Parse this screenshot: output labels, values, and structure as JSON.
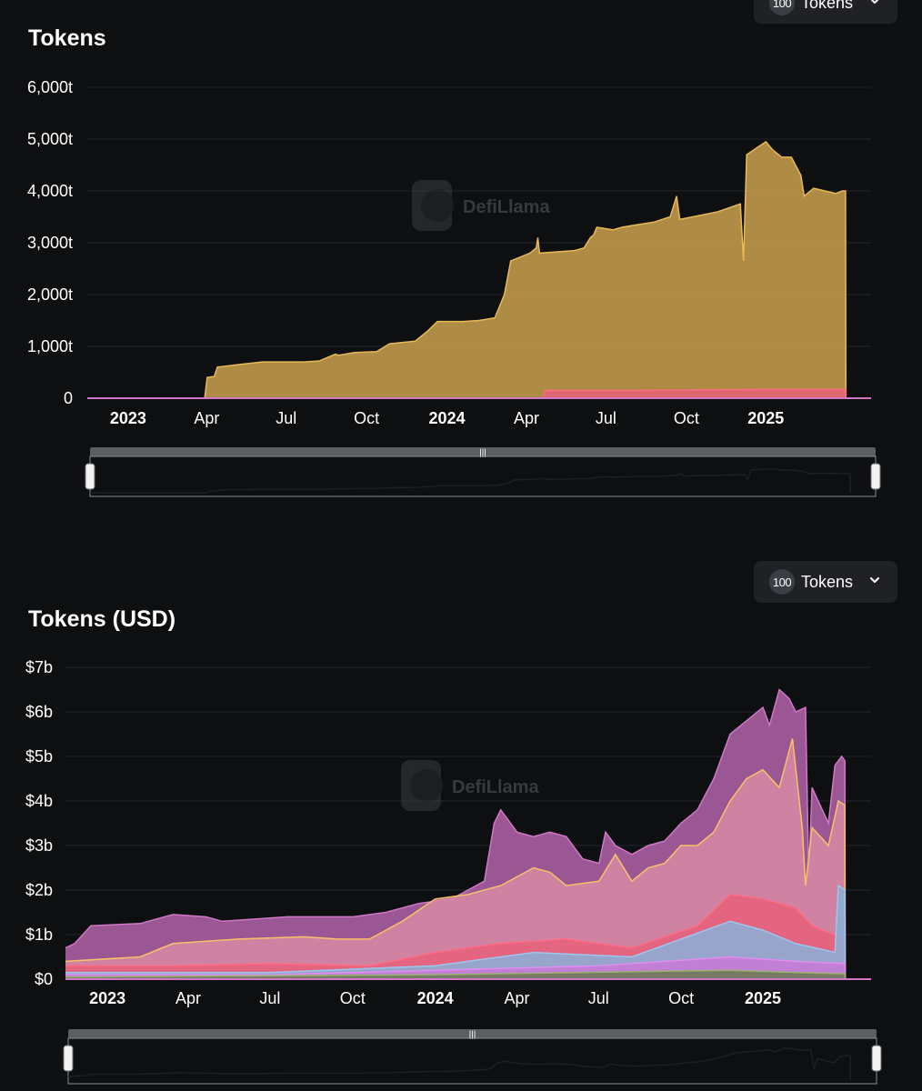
{
  "selector_top": {
    "count": "100",
    "label": "Tokens"
  },
  "selector_bottom": {
    "count": "100",
    "label": "Tokens"
  },
  "watermark": "DefiLlama",
  "chart_data": [
    {
      "type": "area",
      "title": "Tokens",
      "xlabel": "",
      "ylabel": "",
      "ylim": [
        0,
        6000
      ],
      "grid": true,
      "legend": "none",
      "y_ticks": [
        "0",
        "1,000t",
        "2,000t",
        "3,000t",
        "4,000t",
        "5,000t",
        "6,000t"
      ],
      "x_ticks": [
        {
          "label": "2023",
          "t": 0.0,
          "bold": true
        },
        {
          "label": "Apr",
          "t": 0.2466,
          "bold": false
        },
        {
          "label": "Jul",
          "t": 0.4959,
          "bold": false
        },
        {
          "label": "Oct",
          "t": 0.7479,
          "bold": false
        },
        {
          "label": "2024",
          "t": 1.0,
          "bold": true
        },
        {
          "label": "Apr",
          "t": 1.2493,
          "bold": false
        },
        {
          "label": "Jul",
          "t": 1.4986,
          "bold": false
        },
        {
          "label": "Oct",
          "t": 1.7507,
          "bold": false
        },
        {
          "label": "2025",
          "t": 2.0,
          "bold": true
        }
      ],
      "x_range": [
        -0.128,
        2.33
      ],
      "series": [
        {
          "color": "#b8934a",
          "stroke": "#e8b955",
          "points": [
            [
              -0.128,
              0
            ],
            [
              0.24,
              0
            ],
            [
              0.248,
              400
            ],
            [
              0.27,
              420
            ],
            [
              0.28,
              600
            ],
            [
              0.35,
              650
            ],
            [
              0.42,
              700
            ],
            [
              0.55,
              700
            ],
            [
              0.6,
              720
            ],
            [
              0.65,
              850
            ],
            [
              0.66,
              830
            ],
            [
              0.71,
              880
            ],
            [
              0.78,
              900
            ],
            [
              0.82,
              1050
            ],
            [
              0.9,
              1100
            ],
            [
              0.94,
              1300
            ],
            [
              0.97,
              1480
            ],
            [
              1.05,
              1480
            ],
            [
              1.1,
              1500
            ],
            [
              1.15,
              1550
            ],
            [
              1.18,
              2000
            ],
            [
              1.2,
              2650
            ],
            [
              1.26,
              2800
            ],
            [
              1.28,
              2900
            ],
            [
              1.285,
              3100
            ],
            [
              1.29,
              2800
            ],
            [
              1.4,
              2850
            ],
            [
              1.43,
              2900
            ],
            [
              1.45,
              3100
            ],
            [
              1.46,
              3150
            ],
            [
              1.47,
              3300
            ],
            [
              1.52,
              3250
            ],
            [
              1.55,
              3300
            ],
            [
              1.6,
              3350
            ],
            [
              1.65,
              3400
            ],
            [
              1.7,
              3500
            ],
            [
              1.72,
              3900
            ],
            [
              1.73,
              3450
            ],
            [
              1.85,
              3600
            ],
            [
              1.92,
              3750
            ],
            [
              1.93,
              2650
            ],
            [
              1.94,
              4700
            ],
            [
              2.0,
              4950
            ],
            [
              2.02,
              4800
            ],
            [
              2.05,
              4650
            ],
            [
              2.08,
              4650
            ],
            [
              2.11,
              4300
            ],
            [
              2.12,
              3900
            ],
            [
              2.15,
              4050
            ],
            [
              2.22,
              3950
            ],
            [
              2.24,
              4000
            ],
            [
              2.25,
              4000
            ],
            [
              2.251,
              0
            ]
          ]
        },
        {
          "color": "#e8607a",
          "stroke": "#ff6b81",
          "points": [
            [
              1.3,
              0
            ],
            [
              1.31,
              150
            ],
            [
              1.6,
              150
            ],
            [
              1.8,
              160
            ],
            [
              2.0,
              170
            ],
            [
              2.25,
              170
            ],
            [
              2.251,
              0
            ]
          ]
        }
      ]
    },
    {
      "type": "area",
      "title": "Tokens (USD)",
      "xlabel": "",
      "ylabel": "",
      "ylim": [
        0,
        7
      ],
      "grid": true,
      "legend": "none",
      "y_ticks": [
        "$0",
        "$1b",
        "$2b",
        "$3b",
        "$4b",
        "$5b",
        "$6b",
        "$7b"
      ],
      "x_ticks": [
        {
          "label": "2023",
          "t": 0.0,
          "bold": true
        },
        {
          "label": "Apr",
          "t": 0.2466,
          "bold": false
        },
        {
          "label": "Jul",
          "t": 0.4959,
          "bold": false
        },
        {
          "label": "Oct",
          "t": 0.7479,
          "bold": false
        },
        {
          "label": "2024",
          "t": 1.0,
          "bold": true
        },
        {
          "label": "Apr",
          "t": 1.2493,
          "bold": false
        },
        {
          "label": "Jul",
          "t": 1.4986,
          "bold": false
        },
        {
          "label": "Oct",
          "t": 1.7507,
          "bold": false
        },
        {
          "label": "2025",
          "t": 2.0,
          "bold": true
        }
      ],
      "x_range": [
        -0.128,
        2.33
      ],
      "series": [
        {
          "color": "#a35c9c",
          "stroke": "#d277c8",
          "points": [
            [
              -0.128,
              0.7
            ],
            [
              -0.1,
              0.8
            ],
            [
              -0.05,
              1.2
            ],
            [
              0.1,
              1.25
            ],
            [
              0.2,
              1.45
            ],
            [
              0.3,
              1.4
            ],
            [
              0.35,
              1.3
            ],
            [
              0.45,
              1.35
            ],
            [
              0.55,
              1.4
            ],
            [
              0.65,
              1.4
            ],
            [
              0.75,
              1.4
            ],
            [
              0.85,
              1.5
            ],
            [
              0.95,
              1.7
            ],
            [
              1.05,
              1.8
            ],
            [
              1.1,
              2.0
            ],
            [
              1.15,
              2.2
            ],
            [
              1.18,
              3.5
            ],
            [
              1.2,
              3.8
            ],
            [
              1.25,
              3.3
            ],
            [
              1.3,
              3.2
            ],
            [
              1.35,
              3.3
            ],
            [
              1.4,
              3.2
            ],
            [
              1.45,
              2.7
            ],
            [
              1.5,
              2.6
            ],
            [
              1.52,
              3.3
            ],
            [
              1.55,
              3.0
            ],
            [
              1.6,
              2.8
            ],
            [
              1.65,
              3.0
            ],
            [
              1.7,
              3.1
            ],
            [
              1.75,
              3.5
            ],
            [
              1.8,
              3.8
            ],
            [
              1.85,
              4.5
            ],
            [
              1.9,
              5.5
            ],
            [
              1.95,
              5.8
            ],
            [
              2.0,
              6.1
            ],
            [
              2.02,
              5.7
            ],
            [
              2.05,
              6.5
            ],
            [
              2.08,
              6.3
            ],
            [
              2.1,
              6.0
            ],
            [
              2.13,
              6.1
            ],
            [
              2.14,
              2.3
            ],
            [
              2.15,
              4.3
            ],
            [
              2.2,
              3.5
            ],
            [
              2.22,
              4.8
            ],
            [
              2.24,
              5.0
            ],
            [
              2.25,
              4.9
            ],
            [
              2.251,
              0
            ]
          ]
        },
        {
          "color": "#d98aa6",
          "stroke": "#f5c266",
          "points": [
            [
              -0.128,
              0.4
            ],
            [
              0.1,
              0.5
            ],
            [
              0.2,
              0.8
            ],
            [
              0.4,
              0.9
            ],
            [
              0.6,
              0.95
            ],
            [
              0.7,
              0.9
            ],
            [
              0.8,
              0.9
            ],
            [
              0.9,
              1.3
            ],
            [
              1.0,
              1.8
            ],
            [
              1.1,
              1.9
            ],
            [
              1.2,
              2.1
            ],
            [
              1.3,
              2.5
            ],
            [
              1.35,
              2.4
            ],
            [
              1.4,
              2.1
            ],
            [
              1.5,
              2.2
            ],
            [
              1.55,
              2.8
            ],
            [
              1.6,
              2.2
            ],
            [
              1.65,
              2.5
            ],
            [
              1.7,
              2.6
            ],
            [
              1.75,
              3.0
            ],
            [
              1.8,
              3.0
            ],
            [
              1.85,
              3.3
            ],
            [
              1.9,
              4.0
            ],
            [
              1.95,
              4.5
            ],
            [
              2.0,
              4.7
            ],
            [
              2.05,
              4.3
            ],
            [
              2.09,
              5.4
            ],
            [
              2.12,
              3.4
            ],
            [
              2.13,
              2.1
            ],
            [
              2.15,
              3.4
            ],
            [
              2.2,
              3.0
            ],
            [
              2.23,
              4.0
            ],
            [
              2.25,
              3.9
            ],
            [
              2.251,
              0
            ]
          ]
        },
        {
          "color": "#e8607a",
          "stroke": "#ff6b81",
          "points": [
            [
              -0.128,
              0.3
            ],
            [
              0.2,
              0.3
            ],
            [
              0.5,
              0.35
            ],
            [
              0.8,
              0.3
            ],
            [
              1.0,
              0.6
            ],
            [
              1.2,
              0.8
            ],
            [
              1.4,
              0.9
            ],
            [
              1.6,
              0.7
            ],
            [
              1.8,
              1.2
            ],
            [
              1.9,
              1.9
            ],
            [
              2.0,
              1.8
            ],
            [
              2.1,
              1.6
            ],
            [
              2.15,
              1.2
            ],
            [
              2.25,
              0.9
            ],
            [
              2.251,
              0
            ]
          ]
        },
        {
          "color": "#8ab0d8",
          "stroke": "#9fc4ee",
          "points": [
            [
              -0.128,
              0.15
            ],
            [
              0.5,
              0.15
            ],
            [
              1.0,
              0.3
            ],
            [
              1.3,
              0.6
            ],
            [
              1.6,
              0.5
            ],
            [
              1.9,
              1.3
            ],
            [
              2.0,
              1.1
            ],
            [
              2.1,
              0.8
            ],
            [
              2.22,
              0.6
            ],
            [
              2.23,
              2.1
            ],
            [
              2.25,
              2.0
            ],
            [
              2.251,
              0
            ]
          ]
        },
        {
          "color": "#c878d8",
          "stroke": "#e08df0",
          "points": [
            [
              -0.128,
              0.1
            ],
            [
              0.5,
              0.1
            ],
            [
              1.0,
              0.2
            ],
            [
              1.5,
              0.3
            ],
            [
              1.9,
              0.5
            ],
            [
              2.1,
              0.4
            ],
            [
              2.25,
              0.35
            ],
            [
              2.251,
              0
            ]
          ]
        },
        {
          "color": "#6a7a50",
          "stroke": "#9ab070",
          "points": [
            [
              -0.128,
              0.05
            ],
            [
              1.0,
              0.1
            ],
            [
              1.9,
              0.2
            ],
            [
              2.1,
              0.15
            ],
            [
              2.25,
              0.12
            ],
            [
              2.251,
              0
            ]
          ]
        }
      ]
    }
  ]
}
